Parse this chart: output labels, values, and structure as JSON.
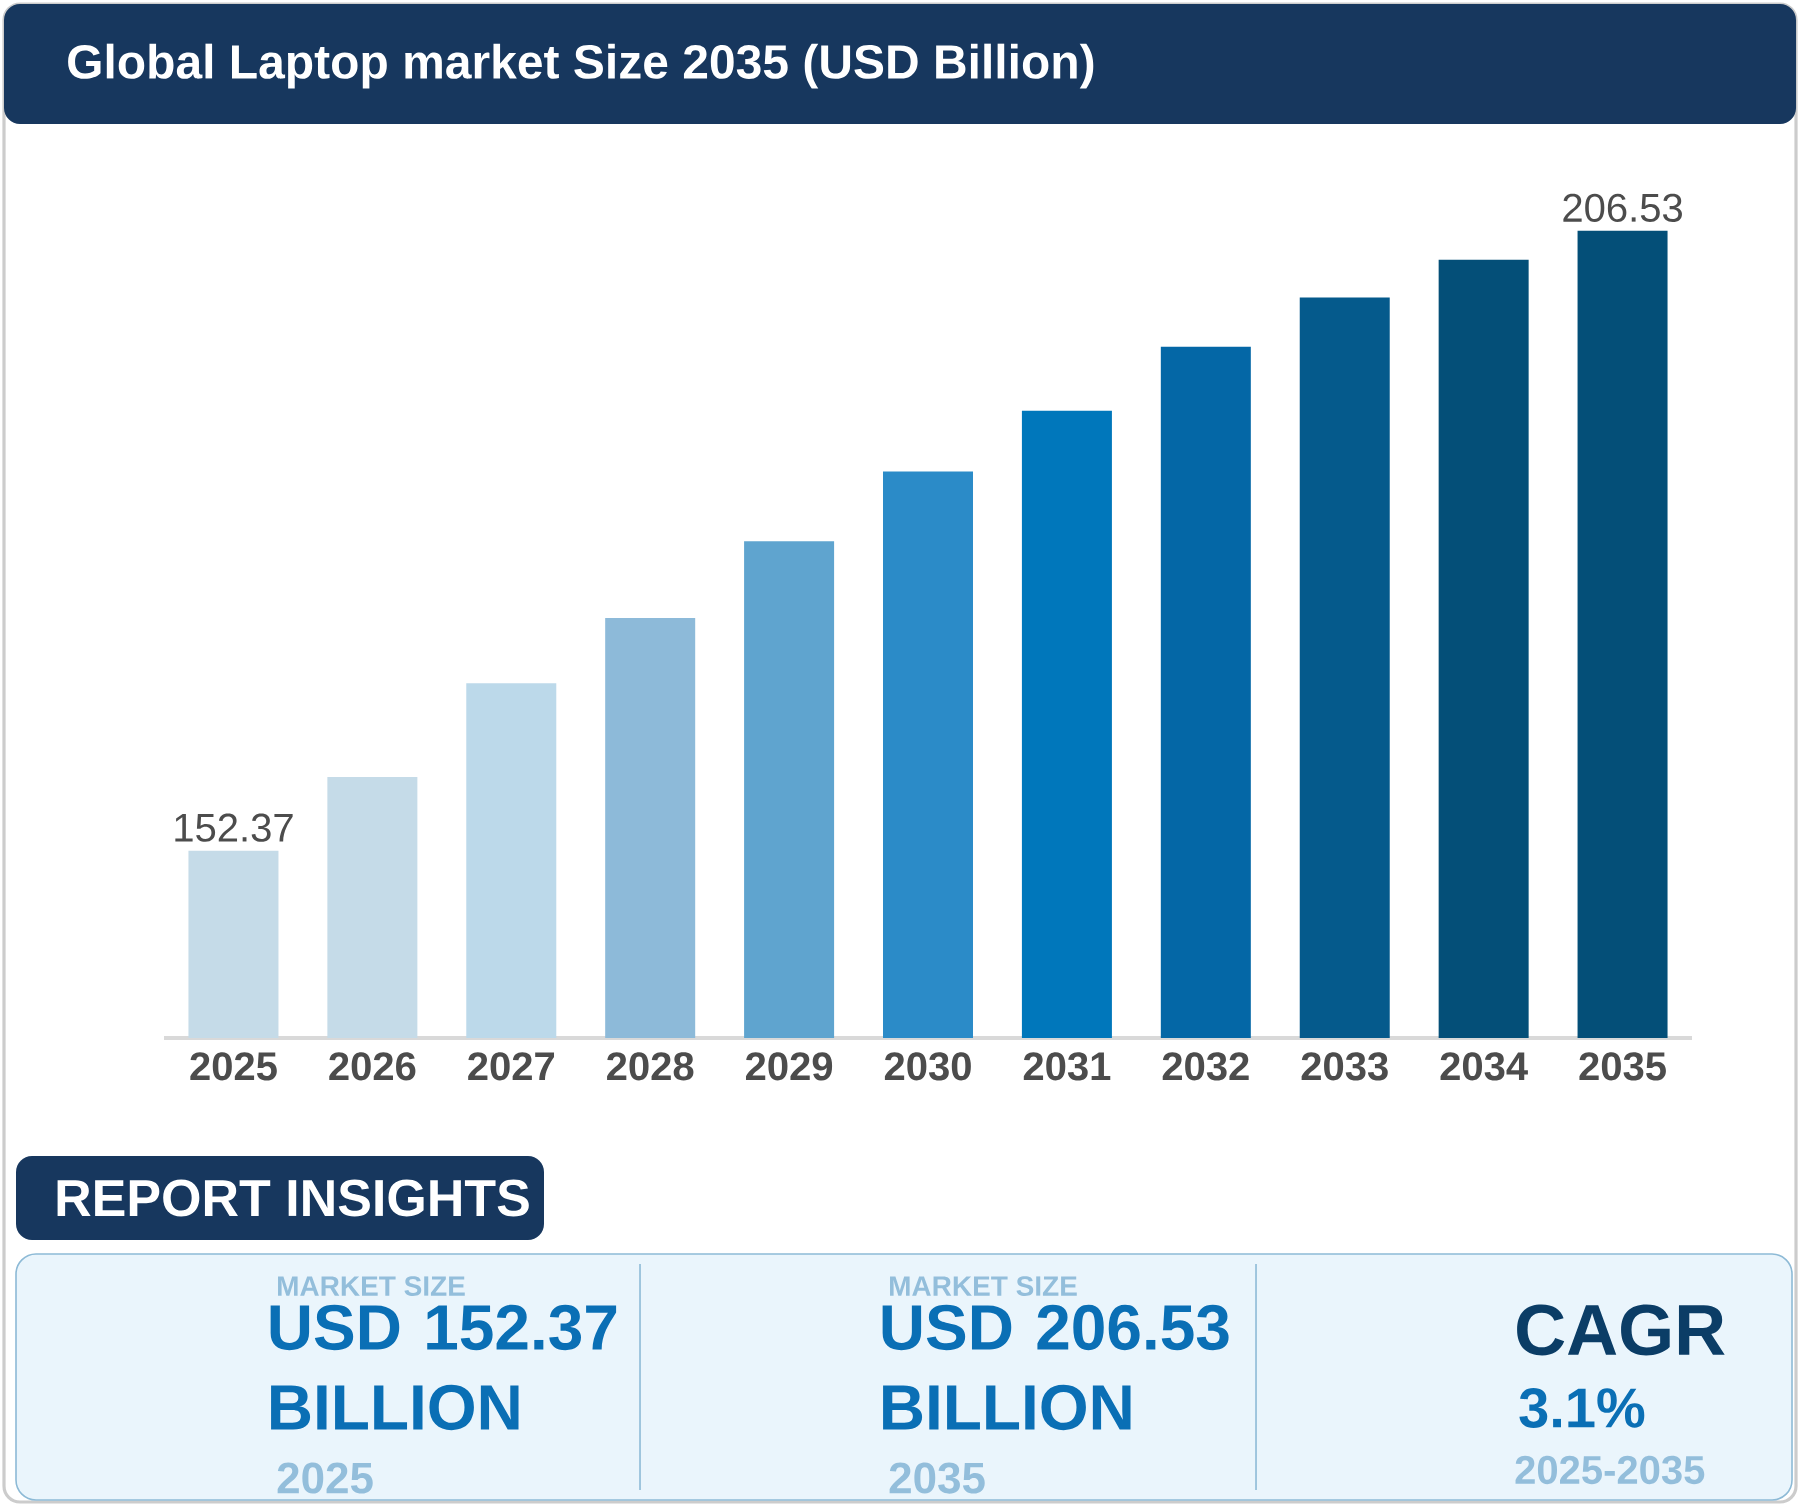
{
  "chart_data": {
    "type": "bar",
    "title": "Global Laptop market Size 2035 (USD Billion)",
    "categories": [
      "2025",
      "2026",
      "2027",
      "2028",
      "2029",
      "2030",
      "2031",
      "2032",
      "2033",
      "2034",
      "2035"
    ],
    "values": [
      152.37,
      158.8,
      167.0,
      172.7,
      179.4,
      185.5,
      190.8,
      196.4,
      200.7,
      204.0,
      206.53
    ],
    "value_labels": [
      "152.37",
      null,
      null,
      null,
      null,
      null,
      null,
      null,
      null,
      null,
      "206.53"
    ],
    "colors": [
      "#c5dbe8",
      "#c5dbe8",
      "#bcd9ea",
      "#8dbad9",
      "#5fa4cf",
      "#2b8bc8",
      "#0077bb",
      "#0467a6",
      "#055a8c",
      "#044f78",
      "#044f78"
    ],
    "ylim": [
      136,
      206.53
    ],
    "tick_labels": "x",
    "annotations": [
      "REPORT INSIGHTS",
      "MARKET SIZE",
      "USD 152.37 BILLION",
      "2025",
      "MARKET SIZE",
      "USD 206.53 BILLION",
      "2035",
      "CAGR",
      "3.1%",
      "2025-2035"
    ]
  }
}
